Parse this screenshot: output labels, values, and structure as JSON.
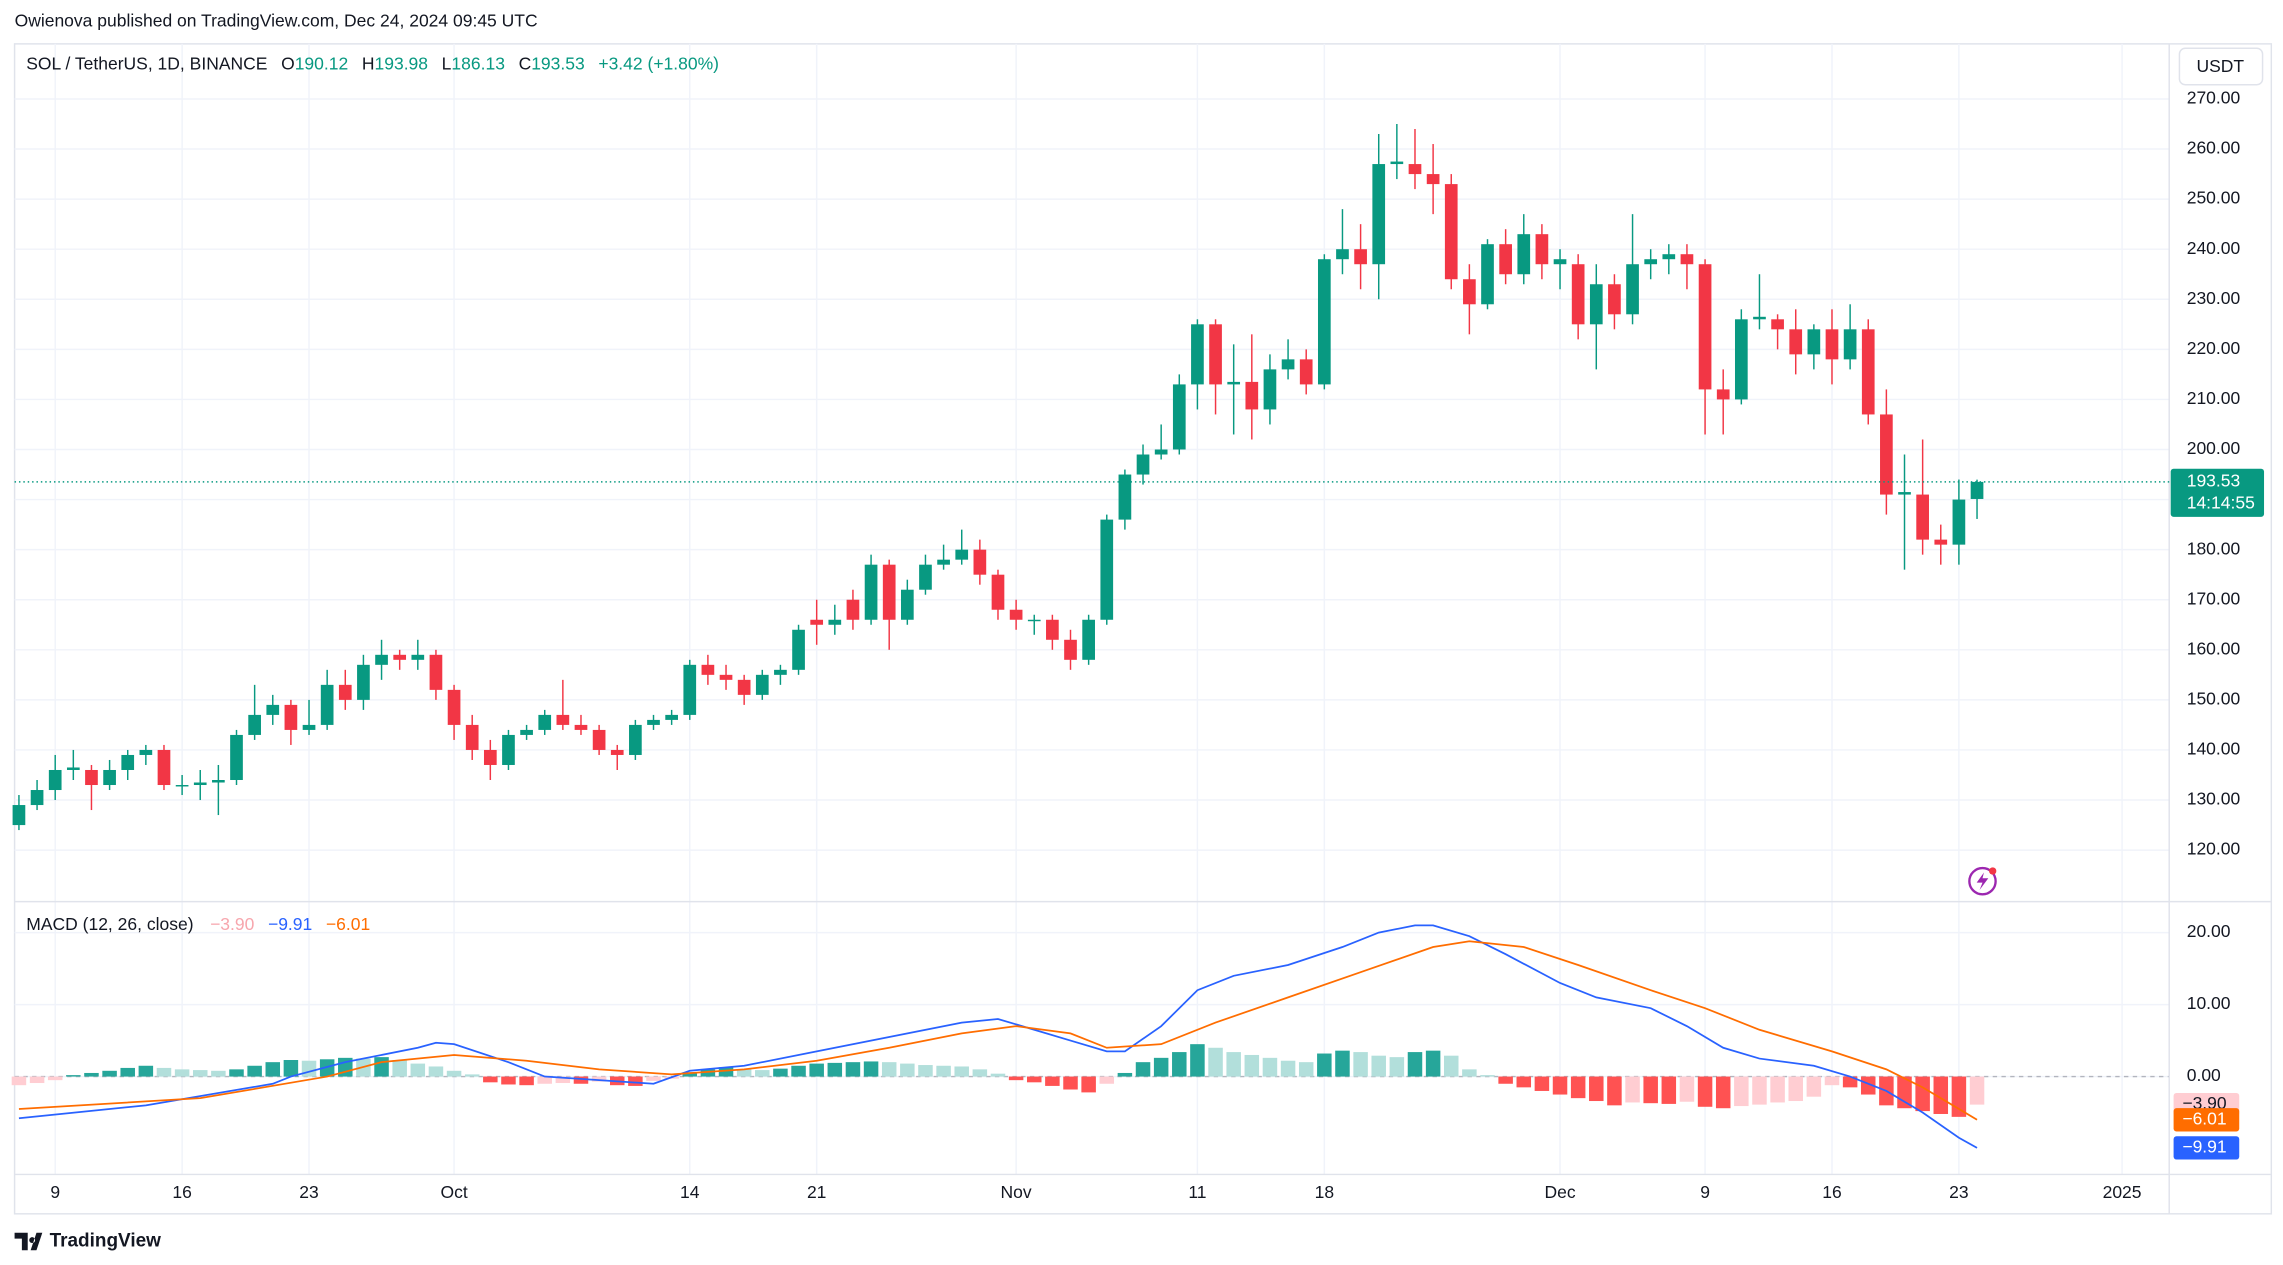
{
  "header": {
    "published": "Owienova published on TradingView.com, Dec 24, 2024 09:45 UTC"
  },
  "chart_data": {
    "type": "candlestick",
    "legend": {
      "symbol": "SOL / TetherUS, 1D, BINANCE",
      "ohlc_letters": [
        "O",
        "H",
        "L",
        "C"
      ],
      "change": "+3.42 (+1.80%)"
    },
    "currency": "USDT",
    "countdown": "14:14:55",
    "up_color": "#089981",
    "down_color": "#f23645",
    "candles": [
      [
        125,
        131,
        124,
        129
      ],
      [
        129,
        134,
        128,
        132
      ],
      [
        132,
        139,
        130,
        136
      ],
      [
        136,
        140,
        134,
        136.5
      ],
      [
        136,
        137,
        128,
        133
      ],
      [
        133,
        138,
        132,
        136
      ],
      [
        136,
        140,
        134,
        139
      ],
      [
        139,
        141,
        137,
        140
      ],
      [
        140,
        141,
        132,
        133
      ],
      [
        133,
        135,
        131,
        133
      ],
      [
        133,
        136,
        130,
        133.5
      ],
      [
        133.5,
        137,
        127,
        134
      ],
      [
        134,
        144,
        133,
        143
      ],
      [
        143,
        153,
        142,
        147
      ],
      [
        147,
        151,
        145,
        149
      ],
      [
        149,
        150,
        141,
        144
      ],
      [
        144,
        150,
        143,
        145
      ],
      [
        145,
        156,
        144,
        153
      ],
      [
        153,
        156,
        148,
        150
      ],
      [
        150,
        159,
        148,
        157
      ],
      [
        157,
        162,
        154,
        159
      ],
      [
        159,
        160,
        156,
        158
      ],
      [
        158,
        162,
        156,
        159
      ],
      [
        159,
        160,
        150,
        152
      ],
      [
        152,
        153,
        142,
        145
      ],
      [
        145,
        147,
        138,
        140
      ],
      [
        140,
        142,
        134,
        137
      ],
      [
        137,
        144,
        136,
        143
      ],
      [
        143,
        145,
        142,
        144
      ],
      [
        144,
        148,
        143,
        147
      ],
      [
        147,
        154,
        144,
        145
      ],
      [
        145,
        147,
        143,
        144
      ],
      [
        144,
        145,
        139,
        140
      ],
      [
        140,
        141,
        136,
        139
      ],
      [
        139,
        146,
        138,
        145
      ],
      [
        145,
        147,
        144,
        146
      ],
      [
        146,
        148,
        145,
        147
      ],
      [
        147,
        158,
        146,
        157
      ],
      [
        157,
        159,
        153,
        155
      ],
      [
        155,
        157,
        152,
        154
      ],
      [
        154,
        155,
        149,
        151
      ],
      [
        151,
        156,
        150,
        155
      ],
      [
        155,
        157,
        153,
        156
      ],
      [
        156,
        165,
        155,
        164
      ],
      [
        166,
        170,
        161,
        165
      ],
      [
        165,
        169,
        163,
        166
      ],
      [
        170,
        172,
        164,
        166
      ],
      [
        166,
        179,
        165,
        177
      ],
      [
        177,
        178,
        160,
        166
      ],
      [
        166,
        174,
        165,
        172
      ],
      [
        172,
        179,
        171,
        177
      ],
      [
        177,
        181,
        176,
        178
      ],
      [
        178,
        184,
        177,
        180
      ],
      [
        180,
        182,
        173,
        175
      ],
      [
        175,
        176,
        166,
        168
      ],
      [
        168,
        170,
        164,
        166
      ],
      [
        166,
        167,
        163,
        166
      ],
      [
        166,
        167,
        160,
        162
      ],
      [
        162,
        164,
        156,
        158
      ],
      [
        158,
        167,
        157,
        166
      ],
      [
        166,
        187,
        165,
        186
      ],
      [
        186,
        196,
        184,
        195
      ],
      [
        195,
        201,
        193,
        199
      ],
      [
        199,
        205,
        198,
        200
      ],
      [
        200,
        215,
        199,
        213
      ],
      [
        213,
        226,
        208,
        225
      ],
      [
        225,
        226,
        207,
        213
      ],
      [
        213,
        221,
        203,
        213.5
      ],
      [
        213.5,
        223,
        202,
        208
      ],
      [
        208,
        219,
        205,
        216
      ],
      [
        216,
        222,
        214,
        218
      ],
      [
        218,
        220,
        211,
        213
      ],
      [
        213,
        239,
        212,
        238
      ],
      [
        238,
        248,
        235,
        240
      ],
      [
        240,
        245,
        232,
        237
      ],
      [
        237,
        263,
        230,
        257
      ],
      [
        257,
        265,
        254,
        257.5
      ],
      [
        257,
        264,
        252,
        255
      ],
      [
        255,
        261,
        247,
        253
      ],
      [
        253,
        255,
        232,
        234
      ],
      [
        234,
        237,
        223,
        229
      ],
      [
        229,
        242,
        228,
        241
      ],
      [
        241,
        244,
        233,
        235
      ],
      [
        235,
        247,
        233,
        243
      ],
      [
        243,
        245,
        234,
        237
      ],
      [
        237,
        240,
        232,
        238
      ],
      [
        237,
        239,
        222,
        225
      ],
      [
        225,
        237,
        216,
        233
      ],
      [
        233,
        235,
        224,
        227
      ],
      [
        227,
        247,
        225,
        237
      ],
      [
        237,
        240,
        234,
        238
      ],
      [
        238,
        241,
        235,
        239
      ],
      [
        239,
        241,
        232,
        237
      ],
      [
        237,
        238,
        203,
        212
      ],
      [
        212,
        216,
        203,
        210
      ],
      [
        210,
        228,
        209,
        226
      ],
      [
        226,
        235,
        224,
        226.5
      ],
      [
        226,
        227,
        220,
        224
      ],
      [
        224,
        228,
        215,
        219
      ],
      [
        219,
        225,
        216,
        224
      ],
      [
        224,
        228,
        213,
        218
      ],
      [
        218,
        229,
        216,
        224
      ],
      [
        224,
        226,
        205,
        207
      ],
      [
        207,
        212,
        187,
        191
      ],
      [
        191,
        199,
        176,
        191.5
      ],
      [
        191,
        202,
        179,
        182
      ],
      [
        182,
        185,
        177,
        181
      ],
      [
        181,
        194,
        177,
        190
      ],
      [
        190.12,
        193.98,
        186.13,
        193.53
      ]
    ],
    "xlim": [
      -0.24,
      118.6
    ],
    "xticks": [
      {
        "value": 2,
        "label": "9"
      },
      {
        "value": 9,
        "label": "16"
      },
      {
        "value": 16,
        "label": "23"
      },
      {
        "value": 24,
        "label": "Oct"
      },
      {
        "value": 37,
        "label": "14"
      },
      {
        "value": 44,
        "label": "21"
      },
      {
        "value": 55,
        "label": "Nov"
      },
      {
        "value": 65,
        "label": "11"
      },
      {
        "value": 72,
        "label": "18"
      },
      {
        "value": 85,
        "label": "Dec"
      },
      {
        "value": 93,
        "label": "9"
      },
      {
        "value": 100,
        "label": "16"
      },
      {
        "value": 107,
        "label": "23"
      },
      {
        "value": 116,
        "label": "2025"
      }
    ],
    "ylim": [
      110,
      281
    ],
    "yticks": [
      {
        "value": 120,
        "label": "120.00"
      },
      {
        "value": 130,
        "label": "130.00"
      },
      {
        "value": 140,
        "label": "140.00"
      },
      {
        "value": 150,
        "label": "150.00"
      },
      {
        "value": 160,
        "label": "160.00"
      },
      {
        "value": 170,
        "label": "170.00"
      },
      {
        "value": 180,
        "label": "180.00"
      },
      {
        "value": 190,
        "label": "190.00"
      },
      {
        "value": 200,
        "label": "200.00"
      },
      {
        "value": 210,
        "label": "210.00"
      },
      {
        "value": 220,
        "label": "220.00"
      },
      {
        "value": 230,
        "label": "230.00"
      },
      {
        "value": 240,
        "label": "240.00"
      },
      {
        "value": 250,
        "label": "250.00"
      },
      {
        "value": 260,
        "label": "260.00"
      },
      {
        "value": 270,
        "label": "270.00"
      }
    ],
    "grid": true,
    "macd": {
      "title": "MACD (12, 26, close)",
      "ylim": [
        -13.6,
        24.1
      ],
      "yticks": [
        {
          "value": 0,
          "label": "0.00"
        },
        {
          "value": 10,
          "label": "10.00"
        },
        {
          "value": 20,
          "label": "20.00"
        }
      ],
      "zero_line": 0,
      "histogram": [
        -1.2,
        -0.9,
        -0.5,
        0.2,
        0.5,
        0.8,
        1.2,
        1.5,
        1.2,
        1.0,
        0.9,
        0.8,
        1.0,
        1.5,
        2.0,
        2.3,
        2.2,
        2.4,
        2.6,
        2.5,
        2.7,
        2.3,
        1.8,
        1.4,
        0.8,
        0.3,
        -0.8,
        -1.1,
        -1.2,
        -1.0,
        -0.9,
        -1.0,
        -0.7,
        -1.2,
        -1.3,
        -0.6,
        -0.3,
        0.6,
        1.0,
        1.3,
        1.0,
        0.9,
        1.1,
        1.5,
        1.8,
        1.9,
        2.0,
        2.1,
        2.0,
        1.8,
        1.6,
        1.5,
        1.4,
        1.0,
        0.4,
        -0.5,
        -0.8,
        -1.3,
        -1.8,
        -2.2,
        -1.0,
        0.5,
        2.0,
        2.6,
        3.4,
        4.5,
        4.0,
        3.4,
        3.0,
        2.6,
        2.2,
        2.0,
        3.2,
        3.6,
        3.4,
        2.9,
        2.7,
        3.4,
        3.6,
        2.9,
        1.0,
        0.2,
        -1.0,
        -1.5,
        -2.0,
        -2.5,
        -3.0,
        -3.4,
        -4.0,
        -3.6,
        -3.7,
        -3.8,
        -3.5,
        -4.2,
        -4.4,
        -4.1,
        -3.9,
        -3.6,
        -3.4,
        -2.8,
        -1.2,
        -1.5,
        -2.5,
        -4.0,
        -4.4,
        -4.8,
        -5.2,
        -5.6,
        -3.9
      ],
      "histogram_colors": {
        "above_rising": "#26a69a",
        "above_falling": "#b2dfdb",
        "below_falling": "#ff5252",
        "below_rising": "#ffcdd2"
      },
      "macd_line": {
        "color": "#2962ff",
        "x": [
          0,
          7,
          14,
          15,
          18,
          22,
          23,
          24,
          27,
          29,
          32,
          35,
          37,
          40,
          44,
          48,
          52,
          54,
          56,
          58,
          60,
          61,
          63,
          65,
          67,
          70,
          73,
          75,
          77,
          78,
          80,
          82,
          85,
          87,
          90,
          92,
          94,
          96,
          99,
          101,
          103,
          105,
          107,
          108
        ],
        "values": [
          -5.8,
          -4,
          -1,
          0,
          2,
          4,
          4.7,
          4.5,
          2,
          0,
          -0.5,
          -1,
          0.8,
          1.5,
          3.5,
          5.5,
          7.5,
          8,
          6.5,
          5,
          3.5,
          3.5,
          7,
          12,
          14,
          15.5,
          18,
          20,
          21,
          21,
          19.5,
          17,
          13,
          11,
          9.5,
          7,
          4,
          2.5,
          1.5,
          0,
          -2,
          -5,
          -8.5,
          -9.91
        ]
      },
      "signal_line": {
        "color": "#ff6d00",
        "x": [
          0,
          10,
          17,
          20,
          24,
          28,
          32,
          36,
          40,
          44,
          48,
          52,
          55,
          58,
          60,
          63,
          66,
          70,
          74,
          78,
          80,
          83,
          86,
          90,
          93,
          96,
          100,
          103,
          105,
          107,
          108
        ],
        "values": [
          -4.5,
          -3,
          0,
          2,
          3,
          2.2,
          1,
          0.3,
          1,
          2.2,
          4,
          6,
          7,
          6,
          4,
          4.5,
          7.5,
          11,
          14.5,
          18,
          18.8,
          18,
          15.5,
          12,
          9.5,
          6.5,
          3.5,
          1,
          -1.5,
          -4.5,
          -6.01
        ]
      },
      "last_values": {
        "histogram": {
          "value": -3.9,
          "label": "−3.90",
          "color": "#ffcdd2"
        },
        "macd_line": {
          "value": -9.91,
          "label": "−9.91",
          "color": "#2962ff"
        },
        "signal_line": {
          "value": -6.01,
          "label": "−6.01",
          "color": "#ff6d00"
        }
      }
    }
  },
  "footer": {
    "brand": "TradingView"
  }
}
